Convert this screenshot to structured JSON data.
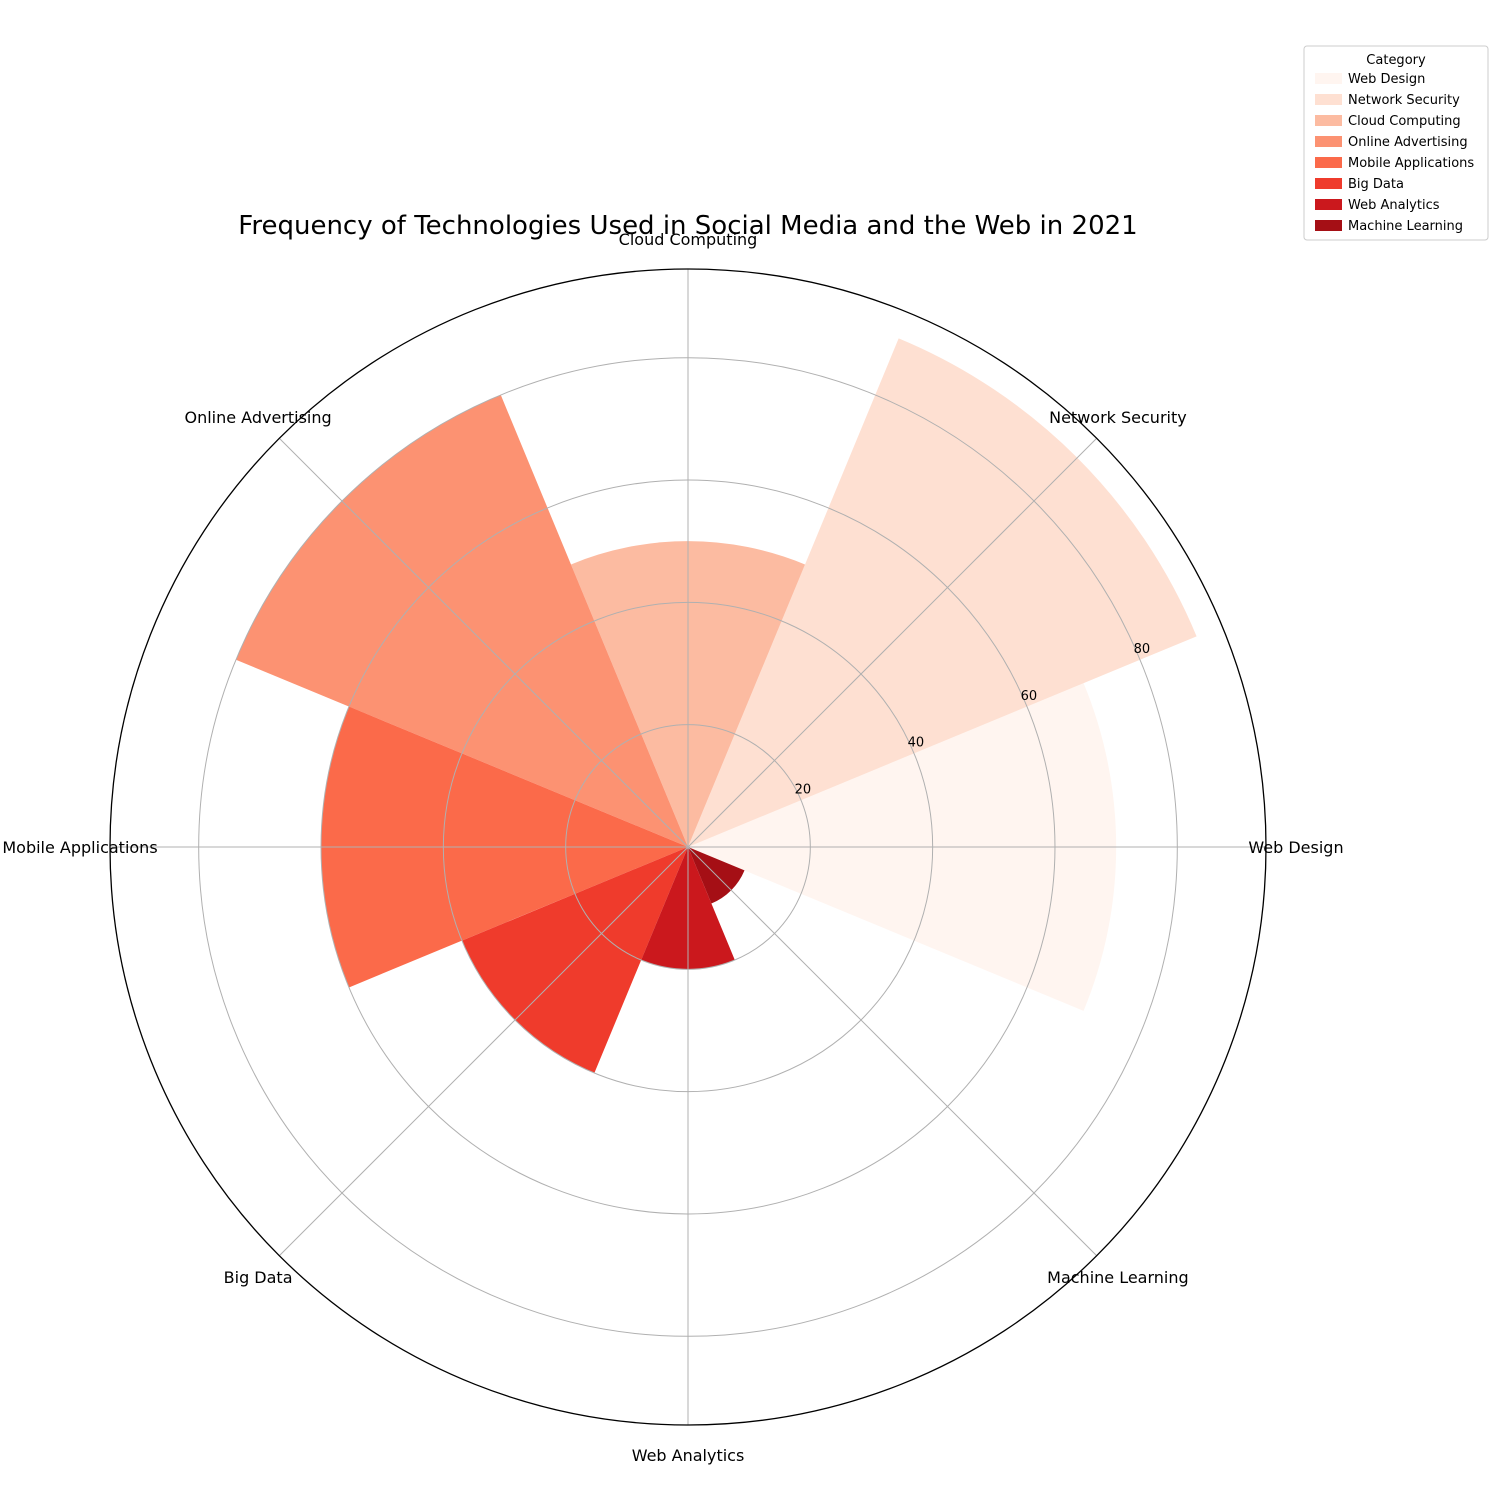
{
  "chart_data": {
    "type": "polar-bar",
    "title": "Frequency of Technologies Used in Social Media and the Web in 2021",
    "categories": [
      "Web Design",
      "Network Security",
      "Cloud Computing",
      "Online Advertising",
      "Mobile Applications",
      "Big Data",
      "Web Analytics",
      "Machine Learning"
    ],
    "values": [
      70,
      90,
      50,
      80,
      60,
      40,
      20,
      10
    ],
    "colors": [
      "#fff5f0",
      "#fee0d2",
      "#fcbba1",
      "#fc9272",
      "#fb6a4a",
      "#ef3b2c",
      "#cb181d",
      "#a50f15"
    ],
    "radial_ticks": [
      "20",
      "40",
      "60",
      "80"
    ],
    "radial_tick_values": [
      20,
      40,
      60,
      80
    ],
    "rmax": 94.5,
    "grid": true,
    "legend": {
      "title": "Category",
      "placement": "upper-right-outside",
      "entries": [
        "Web Design",
        "Network Security",
        "Cloud Computing",
        "Online Advertising",
        "Mobile Applications",
        "Big Data",
        "Web Analytics",
        "Machine Learning"
      ]
    }
  }
}
